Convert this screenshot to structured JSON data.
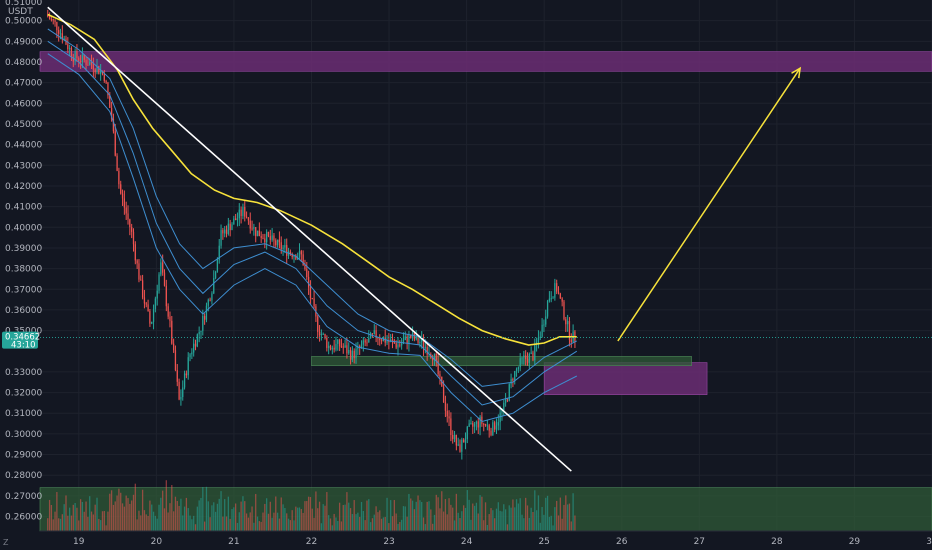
{
  "chart_data": {
    "type": "candlestick",
    "title": "",
    "xlabel": "",
    "ylabel": "",
    "currency_label": "USDT",
    "top_partial_label": "0.51000",
    "current_price": "0.34662",
    "countdown": "43:10",
    "corner_icon": "tradingview-z-logo",
    "ylim": [
      0.253,
      0.51
    ],
    "xlim": [
      18.5,
      30.0
    ],
    "y_ticks": [
      "0.50000",
      "0.49000",
      "0.48000",
      "0.47000",
      "0.46000",
      "0.45000",
      "0.44000",
      "0.43000",
      "0.42000",
      "0.41000",
      "0.40000",
      "0.39000",
      "0.38000",
      "0.37000",
      "0.36000",
      "0.35000",
      "0.33000",
      "0.32000",
      "0.31000",
      "0.30000",
      "0.29000",
      "0.28000",
      "0.27000",
      "0.26000"
    ],
    "x_ticks": [
      "19",
      "20",
      "21",
      "22",
      "23",
      "24",
      "25",
      "26",
      "27",
      "28",
      "29",
      "30"
    ],
    "colors": {
      "background": "#131722",
      "up": "#26a69a",
      "down": "#ef5350",
      "ma_slow": "#f7e23b",
      "ma_fast": "#3e8ed0",
      "trendline": "#ffffff",
      "projection_arrow": "#f7e23b",
      "supply_zone": "#6b2d73",
      "demand_zone": "#2f5a37",
      "price_tag": "#26a69a"
    },
    "price_path": [
      [
        18.6,
        0.503
      ],
      [
        18.75,
        0.497
      ],
      [
        18.95,
        0.483
      ],
      [
        19.2,
        0.479
      ],
      [
        19.35,
        0.474
      ],
      [
        19.45,
        0.452
      ],
      [
        19.55,
        0.418
      ],
      [
        19.7,
        0.398
      ],
      [
        19.82,
        0.372
      ],
      [
        19.95,
        0.352
      ],
      [
        20.08,
        0.382
      ],
      [
        20.2,
        0.352
      ],
      [
        20.32,
        0.315
      ],
      [
        20.45,
        0.338
      ],
      [
        20.6,
        0.352
      ],
      [
        20.75,
        0.372
      ],
      [
        20.85,
        0.396
      ],
      [
        21.0,
        0.402
      ],
      [
        21.15,
        0.408
      ],
      [
        21.3,
        0.398
      ],
      [
        21.45,
        0.395
      ],
      [
        21.6,
        0.391
      ],
      [
        21.75,
        0.388
      ],
      [
        21.9,
        0.386
      ],
      [
        22.0,
        0.368
      ],
      [
        22.1,
        0.352
      ],
      [
        22.25,
        0.342
      ],
      [
        22.4,
        0.343
      ],
      [
        22.55,
        0.338
      ],
      [
        22.7,
        0.343
      ],
      [
        22.85,
        0.348
      ],
      [
        23.0,
        0.345
      ],
      [
        23.15,
        0.343
      ],
      [
        23.3,
        0.347
      ],
      [
        23.45,
        0.344
      ],
      [
        23.6,
        0.338
      ],
      [
        23.72,
        0.318
      ],
      [
        23.82,
        0.302
      ],
      [
        23.92,
        0.292
      ],
      [
        24.05,
        0.302
      ],
      [
        24.2,
        0.306
      ],
      [
        24.35,
        0.302
      ],
      [
        24.5,
        0.312
      ],
      [
        24.62,
        0.328
      ],
      [
        24.75,
        0.336
      ],
      [
        24.88,
        0.338
      ],
      [
        25.0,
        0.352
      ],
      [
        25.08,
        0.366
      ],
      [
        25.18,
        0.371
      ],
      [
        25.28,
        0.358
      ],
      [
        25.36,
        0.347
      ],
      [
        25.42,
        0.3466
      ]
    ],
    "moving_average_slow": [
      [
        18.6,
        0.503
      ],
      [
        18.9,
        0.498
      ],
      [
        19.2,
        0.491
      ],
      [
        19.5,
        0.476
      ],
      [
        19.7,
        0.462
      ],
      [
        19.95,
        0.448
      ],
      [
        20.2,
        0.437
      ],
      [
        20.45,
        0.426
      ],
      [
        20.75,
        0.418
      ],
      [
        21.0,
        0.414
      ],
      [
        21.3,
        0.412
      ],
      [
        21.6,
        0.408
      ],
      [
        22.0,
        0.401
      ],
      [
        22.4,
        0.392
      ],
      [
        22.7,
        0.384
      ],
      [
        23.0,
        0.376
      ],
      [
        23.3,
        0.37
      ],
      [
        23.6,
        0.363
      ],
      [
        23.9,
        0.356
      ],
      [
        24.2,
        0.35
      ],
      [
        24.5,
        0.346
      ],
      [
        24.8,
        0.343
      ],
      [
        25.0,
        0.344
      ],
      [
        25.2,
        0.347
      ],
      [
        25.42,
        0.347
      ]
    ],
    "moving_average_fast_1": [
      [
        18.6,
        0.496
      ],
      [
        19.0,
        0.486
      ],
      [
        19.4,
        0.472
      ],
      [
        19.7,
        0.448
      ],
      [
        20.0,
        0.415
      ],
      [
        20.3,
        0.392
      ],
      [
        20.6,
        0.38
      ],
      [
        21.0,
        0.39
      ],
      [
        21.4,
        0.392
      ],
      [
        21.8,
        0.386
      ],
      [
        22.2,
        0.372
      ],
      [
        22.6,
        0.358
      ],
      [
        23.0,
        0.35
      ],
      [
        23.4,
        0.347
      ],
      [
        23.8,
        0.336
      ],
      [
        24.2,
        0.323
      ],
      [
        24.6,
        0.325
      ],
      [
        25.0,
        0.337
      ],
      [
        25.42,
        0.345
      ]
    ],
    "moving_average_fast_2": [
      [
        18.6,
        0.49
      ],
      [
        19.0,
        0.48
      ],
      [
        19.4,
        0.464
      ],
      [
        19.7,
        0.436
      ],
      [
        20.0,
        0.402
      ],
      [
        20.3,
        0.38
      ],
      [
        20.6,
        0.368
      ],
      [
        21.0,
        0.382
      ],
      [
        21.4,
        0.388
      ],
      [
        21.8,
        0.38
      ],
      [
        22.2,
        0.362
      ],
      [
        22.6,
        0.35
      ],
      [
        23.0,
        0.345
      ],
      [
        23.4,
        0.343
      ],
      [
        23.8,
        0.328
      ],
      [
        24.2,
        0.314
      ],
      [
        24.6,
        0.318
      ],
      [
        25.0,
        0.33
      ],
      [
        25.42,
        0.34
      ]
    ],
    "moving_average_fast_3": [
      [
        18.6,
        0.484
      ],
      [
        19.0,
        0.474
      ],
      [
        19.4,
        0.456
      ],
      [
        19.7,
        0.424
      ],
      [
        20.0,
        0.39
      ],
      [
        20.3,
        0.37
      ],
      [
        20.6,
        0.358
      ],
      [
        21.0,
        0.372
      ],
      [
        21.4,
        0.38
      ],
      [
        21.8,
        0.372
      ],
      [
        22.2,
        0.352
      ],
      [
        22.6,
        0.342
      ],
      [
        23.0,
        0.339
      ],
      [
        23.4,
        0.338
      ],
      [
        23.8,
        0.32
      ],
      [
        24.2,
        0.306
      ],
      [
        24.6,
        0.31
      ],
      [
        25.0,
        0.32
      ],
      [
        25.42,
        0.328
      ]
    ],
    "volume_max": 1.0,
    "volume_floor": 0.253,
    "volume_top": 0.276,
    "zones": [
      {
        "kind": "supply",
        "x0": 18.5,
        "x1": 30.0,
        "y0": 0.4755,
        "y1": 0.485
      },
      {
        "kind": "supply",
        "x0": 25.0,
        "x1": 27.1,
        "y0": 0.319,
        "y1": 0.3345
      },
      {
        "kind": "demand",
        "x0": 22.0,
        "x1": 26.9,
        "y0": 0.333,
        "y1": 0.3375
      },
      {
        "kind": "demand",
        "x0": 18.5,
        "x1": 30.0,
        "y0": 0.253,
        "y1": 0.274
      }
    ],
    "trendline": {
      "x0": 18.6,
      "y0": 0.5065,
      "x1": 25.35,
      "y1": 0.282
    },
    "projection_arrow": {
      "x0": 25.95,
      "y0": 0.345,
      "x1": 28.3,
      "y1": 0.477
    }
  }
}
